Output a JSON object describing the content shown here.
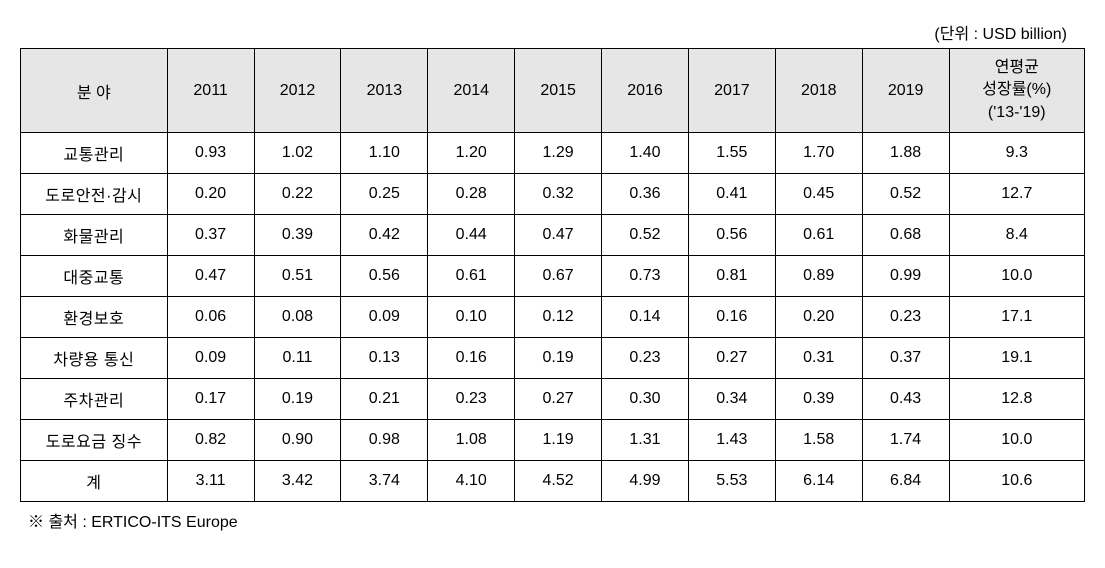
{
  "unit_label": "(단위 : USD billion)",
  "source_note": "※ 출처 : ERTICO-ITS Europe",
  "table": {
    "type": "table",
    "background_color": "#ffffff",
    "header_bg_color": "#e6e6e6",
    "border_color": "#000000",
    "text_color": "#000000",
    "font_size_pt": 12,
    "columns": [
      {
        "key": "field",
        "label": "분 야",
        "width_pct": 13,
        "align": "center"
      },
      {
        "key": "2011",
        "label": "2011",
        "width_pct": 7.7,
        "align": "center"
      },
      {
        "key": "2012",
        "label": "2012",
        "width_pct": 7.7,
        "align": "center"
      },
      {
        "key": "2013",
        "label": "2013",
        "width_pct": 7.7,
        "align": "center"
      },
      {
        "key": "2014",
        "label": "2014",
        "width_pct": 7.7,
        "align": "center"
      },
      {
        "key": "2015",
        "label": "2015",
        "width_pct": 7.7,
        "align": "center"
      },
      {
        "key": "2016",
        "label": "2016",
        "width_pct": 7.7,
        "align": "center"
      },
      {
        "key": "2017",
        "label": "2017",
        "width_pct": 7.7,
        "align": "center"
      },
      {
        "key": "2018",
        "label": "2018",
        "width_pct": 7.7,
        "align": "center"
      },
      {
        "key": "2019",
        "label": "2019",
        "width_pct": 7.7,
        "align": "center"
      },
      {
        "key": "growth",
        "label": "연평균\n성장률(%)\n('13-'19)",
        "width_pct": 12,
        "align": "center"
      }
    ],
    "rows": [
      {
        "field": "교통관리",
        "2011": "0.93",
        "2012": "1.02",
        "2013": "1.10",
        "2014": "1.20",
        "2015": "1.29",
        "2016": "1.40",
        "2017": "1.55",
        "2018": "1.70",
        "2019": "1.88",
        "growth": "9.3"
      },
      {
        "field": "도로안전·감시",
        "2011": "0.20",
        "2012": "0.22",
        "2013": "0.25",
        "2014": "0.28",
        "2015": "0.32",
        "2016": "0.36",
        "2017": "0.41",
        "2018": "0.45",
        "2019": "0.52",
        "growth": "12.7"
      },
      {
        "field": "화물관리",
        "2011": "0.37",
        "2012": "0.39",
        "2013": "0.42",
        "2014": "0.44",
        "2015": "0.47",
        "2016": "0.52",
        "2017": "0.56",
        "2018": "0.61",
        "2019": "0.68",
        "growth": "8.4"
      },
      {
        "field": "대중교통",
        "2011": "0.47",
        "2012": "0.51",
        "2013": "0.56",
        "2014": "0.61",
        "2015": "0.67",
        "2016": "0.73",
        "2017": "0.81",
        "2018": "0.89",
        "2019": "0.99",
        "growth": "10.0"
      },
      {
        "field": "환경보호",
        "2011": "0.06",
        "2012": "0.08",
        "2013": "0.09",
        "2014": "0.10",
        "2015": "0.12",
        "2016": "0.14",
        "2017": "0.16",
        "2018": "0.20",
        "2019": "0.23",
        "growth": "17.1"
      },
      {
        "field": "차량용 통신",
        "2011": "0.09",
        "2012": "0.11",
        "2013": "0.13",
        "2014": "0.16",
        "2015": "0.19",
        "2016": "0.23",
        "2017": "0.27",
        "2018": "0.31",
        "2019": "0.37",
        "growth": "19.1"
      },
      {
        "field": "주차관리",
        "2011": "0.17",
        "2012": "0.19",
        "2013": "0.21",
        "2014": "0.23",
        "2015": "0.27",
        "2016": "0.30",
        "2017": "0.34",
        "2018": "0.39",
        "2019": "0.43",
        "growth": "12.8"
      },
      {
        "field": "도로요금 징수",
        "2011": "0.82",
        "2012": "0.90",
        "2013": "0.98",
        "2014": "1.08",
        "2015": "1.19",
        "2016": "1.31",
        "2017": "1.43",
        "2018": "1.58",
        "2019": "1.74",
        "growth": "10.0"
      },
      {
        "field": "계",
        "2011": "3.11",
        "2012": "3.42",
        "2013": "3.74",
        "2014": "4.10",
        "2015": "4.52",
        "2016": "4.99",
        "2017": "5.53",
        "2018": "6.14",
        "2019": "6.84",
        "growth": "10.6"
      }
    ]
  }
}
